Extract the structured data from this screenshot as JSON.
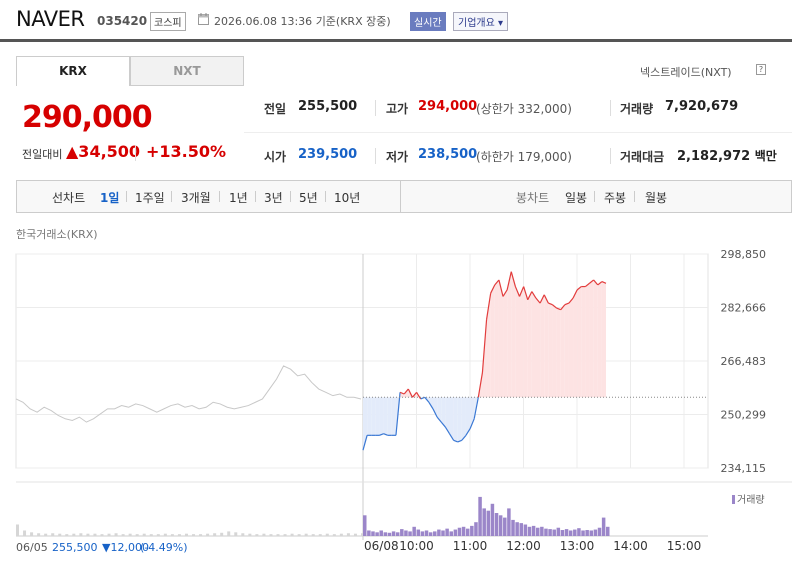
{
  "header": {
    "name": "NAVER",
    "code": "035420",
    "market": "코스피",
    "datetime": "2026.06.08 13:36",
    "basis": "기준(KRX 장중)",
    "live_badge": "실시간",
    "overview_label": "기업개요 ▾"
  },
  "tabs": [
    {
      "label": "KRX",
      "active": true
    },
    {
      "label": "NXT",
      "active": false
    }
  ],
  "next_trade_link": "넥스트레이드(NXT)",
  "price": {
    "current": "290,000",
    "change_label": "전일대비",
    "change_amount": "▲34,500",
    "change_pct": "+13.50%"
  },
  "stats": {
    "prev_label": "전일",
    "prev": "255,500",
    "high_label": "고가",
    "high": "294,000",
    "upper_limit": "(상한가 332,000)",
    "volume_label": "거래량",
    "volume": "7,920,679",
    "open_label": "시가",
    "open": "239,500",
    "low_label": "저가",
    "low": "238,500",
    "lower_limit": "(하한가 179,000)",
    "value_label": "거래대금",
    "value": "2,182,972",
    "value_unit": "백만"
  },
  "chart_tabs": {
    "line_label": "선차트",
    "periods": [
      "1일",
      "1주일",
      "3개월",
      "1년",
      "3년",
      "5년",
      "10년"
    ],
    "candle_label": "봉차트",
    "candles": [
      "일봉",
      "주봉",
      "월봉"
    ]
  },
  "source": "한국거래소(KRX)",
  "prev_day": {
    "date": "06/05",
    "price": "255,500",
    "change": "▼12,000",
    "pct": "(-4.49%)"
  },
  "colors": {
    "up": "#d60000",
    "down": "#1762c7",
    "volume": "#9b86c9",
    "prev_line": "#c8c8c8"
  },
  "chart_data": {
    "type": "line",
    "y_ticks": [
      "298,850",
      "282,666",
      "266,483",
      "250,299",
      "234,115"
    ],
    "y_tick_values": [
      298850,
      282666,
      266483,
      250299,
      234115
    ],
    "baseline": 255500,
    "x_ticks": [
      "06/08",
      "10:00",
      "11:00",
      "12:00",
      "13:00",
      "14:00",
      "15:00"
    ],
    "volume_label": "거래량",
    "prev_day_series": [
      255000,
      254000,
      252000,
      251000,
      252500,
      251500,
      250000,
      249000,
      248500,
      249500,
      248000,
      249000,
      250500,
      252000,
      252000,
      253000,
      252500,
      253500,
      253000,
      252000,
      251000,
      252000,
      253000,
      253500,
      252500,
      253000,
      252000,
      252500,
      254000,
      253500,
      252500,
      252000,
      252500,
      253000,
      254000,
      255000,
      258000,
      261000,
      265000,
      264000,
      262000,
      262500,
      260000,
      258000,
      257000,
      256000,
      256500,
      255500,
      255500,
      255000
    ],
    "today_series": [
      239500,
      244000,
      244000,
      244000,
      244000,
      244500,
      244000,
      244000,
      244000,
      257000,
      256500,
      258000,
      255500,
      257000,
      255000,
      255500,
      254000,
      252000,
      249500,
      248000,
      246500,
      244500,
      242500,
      242000,
      242500,
      244000,
      246000,
      249000,
      255500,
      263000,
      279000,
      287000,
      289500,
      291000,
      286000,
      288000,
      293500,
      289000,
      286000,
      289000,
      285000,
      287500,
      285500,
      284000,
      286500,
      284000,
      283500,
      282500,
      282000,
      283500,
      284000,
      285500,
      288000,
      289000,
      289000,
      290000,
      291000,
      289500,
      290500,
      290000
    ],
    "today_volume": [
      0.45,
      0.12,
      0.1,
      0.08,
      0.12,
      0.08,
      0.07,
      0.1,
      0.08,
      0.15,
      0.12,
      0.1,
      0.2,
      0.14,
      0.1,
      0.12,
      0.08,
      0.1,
      0.14,
      0.12,
      0.16,
      0.1,
      0.14,
      0.18,
      0.2,
      0.16,
      0.22,
      0.3,
      0.85,
      0.6,
      0.55,
      0.7,
      0.5,
      0.45,
      0.4,
      0.6,
      0.35,
      0.3,
      0.28,
      0.25,
      0.2,
      0.22,
      0.18,
      0.2,
      0.16,
      0.15,
      0.14,
      0.18,
      0.13,
      0.15,
      0.12,
      0.14,
      0.17,
      0.12,
      0.13,
      0.12,
      0.14,
      0.18,
      0.4,
      0.2
    ],
    "prev_day_volume": [
      0.25,
      0.12,
      0.08,
      0.06,
      0.05,
      0.06,
      0.05,
      0.04,
      0.05,
      0.06,
      0.05,
      0.05,
      0.04,
      0.05,
      0.06,
      0.04,
      0.05,
      0.04,
      0.05,
      0.04,
      0.04,
      0.05,
      0.04,
      0.04,
      0.05,
      0.04,
      0.04,
      0.05,
      0.06,
      0.07,
      0.1,
      0.08,
      0.06,
      0.05,
      0.04,
      0.05,
      0.04,
      0.04,
      0.04,
      0.05,
      0.04,
      0.05,
      0.04,
      0.04,
      0.05,
      0.04,
      0.05,
      0.06,
      0.05,
      0.06
    ]
  }
}
